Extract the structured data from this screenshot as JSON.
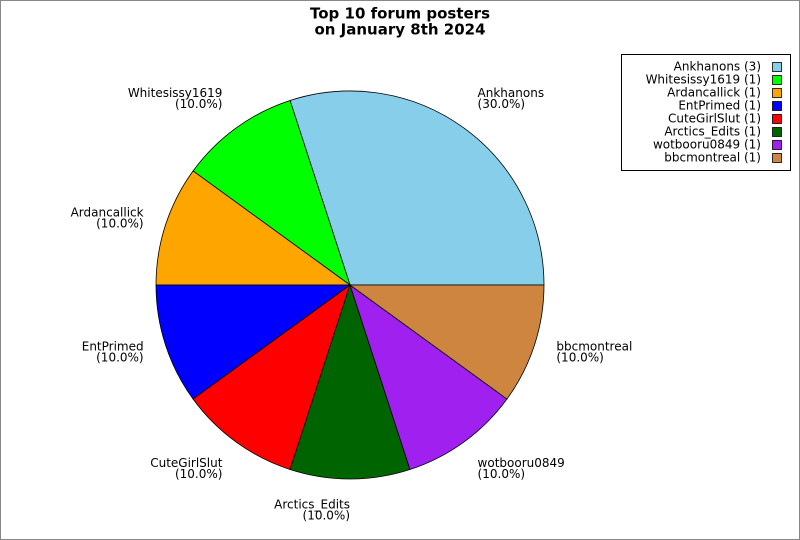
{
  "chart_data": {
    "type": "pie",
    "title": [
      "Top 10 forum posters",
      "on January 8th 2024"
    ],
    "categories": [
      "Ankhanons",
      "Whitesissy1619",
      "Ardancallick",
      "EntPrimed",
      "CuteGirlSlut",
      "Arctics_Edits",
      "wotbooru0849",
      "bbcmontreal"
    ],
    "values": [
      30,
      10,
      10,
      10,
      10,
      10,
      10,
      10
    ],
    "value_labels": [
      "(30.0%)",
      "(10.0%)",
      "(10.0%)",
      "(10.0%)",
      "(10.0%)",
      "(10.0%)",
      "(10.0%)",
      "(10.0%)"
    ],
    "legend_labels": [
      "Ankhanons (3)",
      "Whitesissy1619 (1)",
      "Ardancallick (1)",
      "EntPrimed (1)",
      "CuteGirlSlut (1)",
      "Arctics_Edits (1)",
      "wotbooru0849 (1)",
      "bbcmontreal (1)"
    ],
    "colors": [
      "#87ceeb",
      "#00ff00",
      "#ffa500",
      "#0000ff",
      "#ff0000",
      "#006400",
      "#a020f0",
      "#cd853f"
    ],
    "legend": "upper right"
  }
}
